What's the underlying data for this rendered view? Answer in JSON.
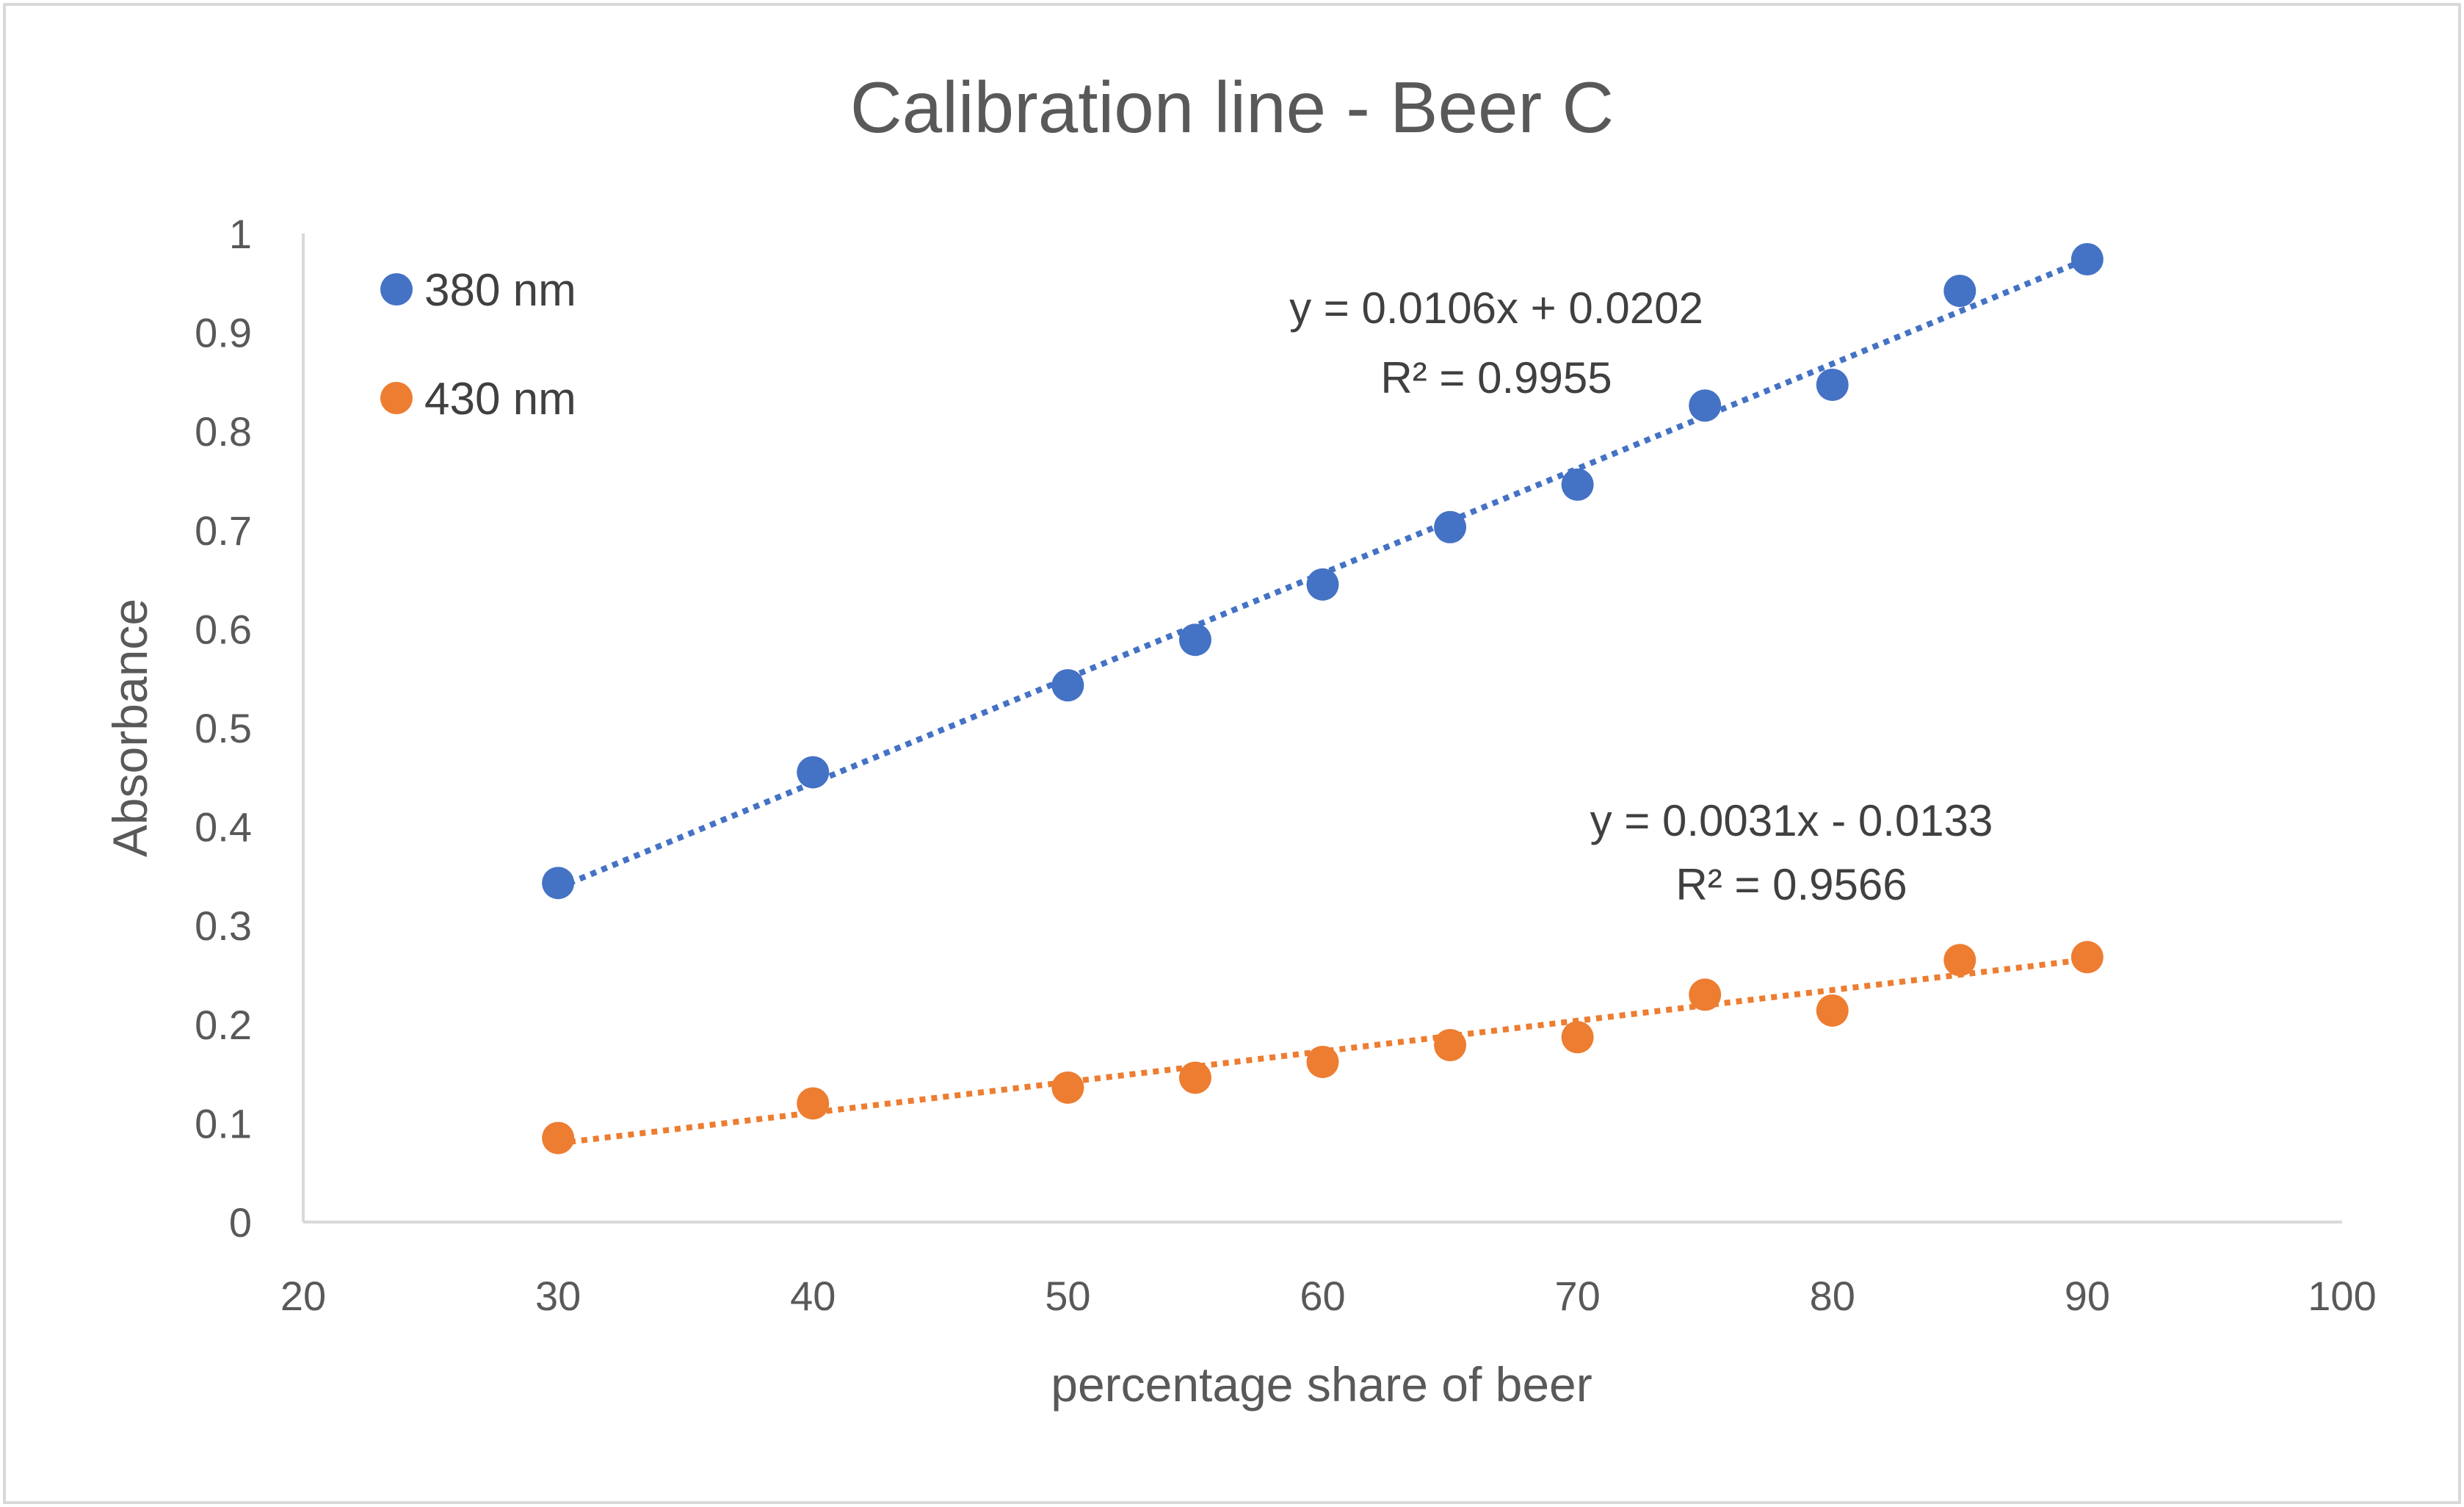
{
  "chart_data": {
    "type": "scatter",
    "title": "Calibration line - Beer C",
    "xlabel": "percentage share of beer",
    "ylabel": "Absorbance",
    "xlim": [
      20,
      100
    ],
    "ylim": [
      0,
      1
    ],
    "x_ticks": [
      20,
      30,
      40,
      50,
      60,
      70,
      80,
      90,
      100
    ],
    "y_ticks": [
      0,
      0.1,
      0.2,
      0.3,
      0.4,
      0.5,
      0.6,
      0.7,
      0.8,
      0.9,
      1
    ],
    "x_tick_labels": [
      "20",
      "30",
      "40",
      "50",
      "60",
      "70",
      "80",
      "90",
      "100"
    ],
    "y_tick_labels": [
      "0",
      "0.1",
      "0.2",
      "0.3",
      "0.4",
      "0.5",
      "0.6",
      "0.7",
      "0.8",
      "0.9",
      "1"
    ],
    "grid": false,
    "legend_position": "top-left",
    "series": [
      {
        "name": "380 nm",
        "color": "#4472C4",
        "x": [
          30,
          40,
          50,
          55,
          60,
          65,
          70,
          75,
          80,
          85,
          90
        ],
        "y": [
          0.343,
          0.455,
          0.543,
          0.589,
          0.645,
          0.703,
          0.746,
          0.826,
          0.847,
          0.942,
          0.974
        ],
        "trendline": {
          "slope": 0.0106,
          "intercept": 0.0202,
          "equation": "y = 0.0106x + 0.0202",
          "r2": "R² = 0.9955"
        }
      },
      {
        "name": "430 nm",
        "color": "#ED7D31",
        "x": [
          30,
          40,
          50,
          55,
          60,
          65,
          70,
          75,
          80,
          85,
          90
        ],
        "y": [
          0.085,
          0.12,
          0.136,
          0.146,
          0.162,
          0.179,
          0.187,
          0.23,
          0.214,
          0.265,
          0.268
        ],
        "trendline": {
          "slope": 0.0031,
          "intercept": -0.0133,
          "equation": "y = 0.0031x - 0.0133",
          "r2": "R² = 0.9566"
        }
      }
    ]
  }
}
